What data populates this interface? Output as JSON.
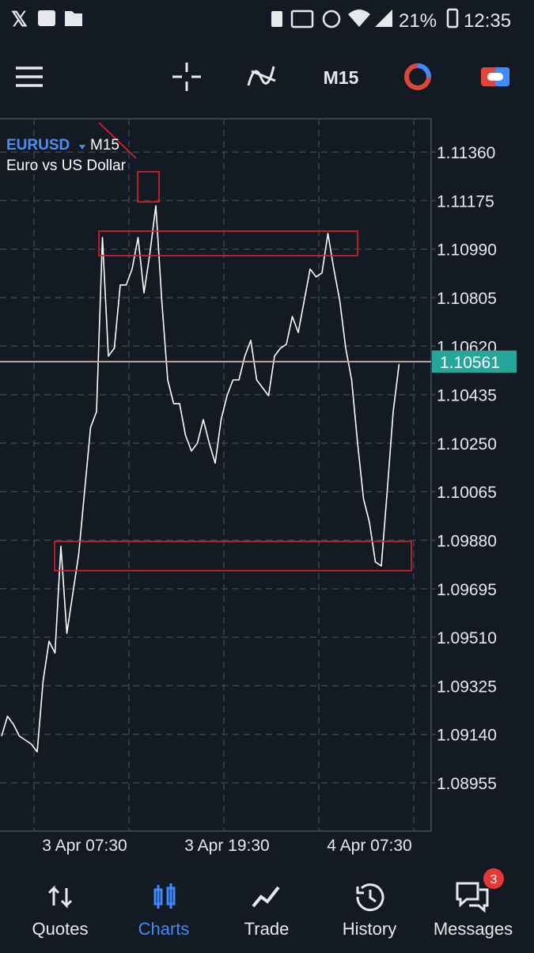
{
  "status_bar": {
    "battery": "21%",
    "time": "12:35"
  },
  "toolbar": {
    "timeframe": "M15"
  },
  "chart_data": {
    "type": "line",
    "symbol": "EURUSD",
    "timeframe": "M15",
    "description": "Euro vs US Dollar",
    "categories": [
      null,
      null,
      null,
      null,
      null,
      null,
      null,
      null,
      null,
      null,
      null,
      null,
      null,
      null,
      "3 Apr 07:30",
      null,
      null,
      null,
      null,
      null,
      null,
      null,
      null,
      null,
      null,
      null,
      null,
      null,
      null,
      null,
      null,
      null,
      null,
      null,
      null,
      null,
      null,
      null,
      "3 Apr 19:30",
      null,
      null,
      null,
      null,
      null,
      null,
      null,
      null,
      null,
      null,
      null,
      null,
      null,
      null,
      null,
      null,
      null,
      null,
      null,
      null,
      null,
      null,
      null,
      "4 Apr 07:30",
      null,
      null,
      null,
      null,
      null
    ],
    "values": [
      1.09133,
      1.09209,
      1.09178,
      1.09133,
      1.09118,
      1.09103,
      1.09073,
      1.09344,
      1.09495,
      1.0945,
      1.09857,
      1.09525,
      1.09676,
      1.09827,
      1.10069,
      1.1031,
      1.1037,
      1.11034,
      1.10582,
      1.10612,
      1.10853,
      1.10853,
      1.10914,
      1.11034,
      1.10823,
      1.10974,
      1.11155,
      1.10793,
      1.10491,
      1.10401,
      1.10401,
      1.1028,
      1.1022,
      1.1025,
      1.1034,
      1.1025,
      1.10174,
      1.1034,
      1.10431,
      1.10491,
      1.10491,
      1.10582,
      1.10642,
      1.10491,
      1.10461,
      1.10431,
      1.10582,
      1.10612,
      1.10627,
      1.10733,
      1.10672,
      1.10793,
      1.10914,
      1.10884,
      1.10899,
      1.11049,
      1.10914,
      1.10793,
      1.10612,
      1.10491,
      1.1025,
      1.10038,
      1.09948,
      1.09797,
      1.09782,
      1.10069,
      1.1037,
      1.10552
    ],
    "color": "#ffffff",
    "ylim": [
      1.08771,
      1.11487
    ],
    "yticks": [
      1.08955,
      {
        "value": 1.0914,
        "label": "1.09140"
      },
      1.09325,
      {
        "value": 1.0951,
        "label": "1.09510"
      },
      1.09695,
      {
        "value": 1.0988,
        "label": "1.09880"
      },
      1.10065,
      {
        "value": 1.1025,
        "label": "1.10250"
      },
      1.10435,
      {
        "value": 1.1062,
        "label": "1.10620"
      },
      1.10805,
      {
        "value": 1.1099,
        "label": "1.10990"
      },
      1.11175,
      {
        "value": 1.1136,
        "label": "1.11360"
      }
    ],
    "current_price": 1.10561,
    "grid": true
  },
  "nav": {
    "items": [
      "Quotes",
      "Charts",
      "Trade",
      "History",
      "Messages"
    ],
    "badge": 3
  }
}
